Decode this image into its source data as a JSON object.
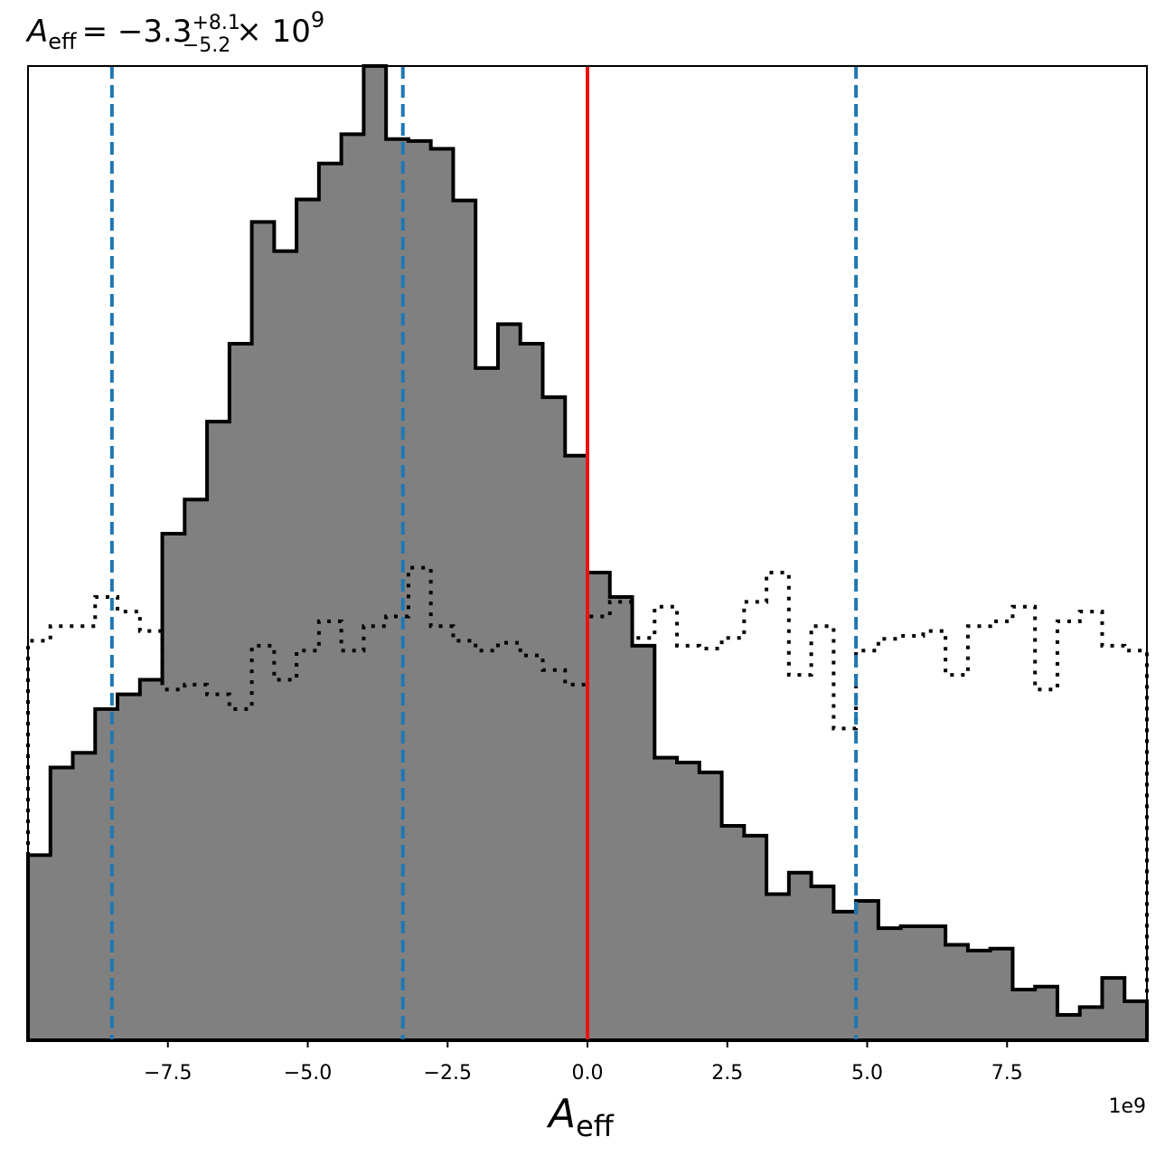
{
  "chart_data": {
    "type": "histogram",
    "title": {
      "symbol": "A",
      "symbol_sub": "eff",
      "equals": "= −3.3",
      "sup": "+8.1",
      "sub": "−5.2",
      "times": "× 10",
      "exp": "9"
    },
    "xlabel": {
      "symbol": "A",
      "sub": "eff"
    },
    "offset_text": "1e9",
    "x_scale_factor": 1000000000.0,
    "xlim": [
      -10.0,
      10.0
    ],
    "ylim": [
      0,
      1.0
    ],
    "y_ticks_shown": false,
    "x_ticks": [
      -7.5,
      -5.0,
      -2.5,
      0.0,
      2.5,
      5.0,
      7.5
    ],
    "x_tick_labels": [
      "−7.5",
      "−5.0",
      "−2.5",
      "0.0",
      "2.5",
      "5.0",
      "7.5"
    ],
    "bin_edges": [
      -10.0,
      -9.6,
      -9.2,
      -8.8,
      -8.4,
      -8.0,
      -7.6,
      -7.2,
      -6.8,
      -6.4,
      -6.0,
      -5.6,
      -5.2,
      -4.8,
      -4.4,
      -4.0,
      -3.6,
      -3.2,
      -2.8,
      -2.4,
      -2.0,
      -1.6,
      -1.2,
      -0.8,
      -0.4,
      0.0,
      0.4,
      0.8,
      1.2,
      1.6,
      2.0,
      2.4,
      2.8,
      3.2,
      3.6,
      4.0,
      4.4,
      4.8,
      5.2,
      5.6,
      6.0,
      6.4,
      6.8,
      7.2,
      7.6,
      8.0,
      8.4,
      8.8,
      9.2,
      9.6,
      10.0
    ],
    "series": [
      {
        "style": "filled",
        "fill_color": "#808080",
        "edge_color": "#000000",
        "values": [
          0.19,
          0.28,
          0.295,
          0.34,
          0.355,
          0.37,
          0.52,
          0.555,
          0.635,
          0.715,
          0.84,
          0.81,
          0.863,
          0.9,
          0.93,
          1.0,
          0.925,
          0.923,
          0.915,
          0.862,
          0.69,
          0.735,
          0.715,
          0.66,
          0.6,
          0.48,
          0.455,
          0.405,
          0.29,
          0.285,
          0.275,
          0.22,
          0.21,
          0.15,
          0.172,
          0.158,
          0.132,
          0.143,
          0.115,
          0.117,
          0.117,
          0.098,
          0.092,
          0.094,
          0.052,
          0.055,
          0.026,
          0.034,
          0.064,
          0.04
        ]
      },
      {
        "style": "dotted",
        "edge_color": "#000000",
        "values": [
          0.41,
          0.425,
          0.425,
          0.455,
          0.44,
          0.42,
          0.36,
          0.365,
          0.355,
          0.34,
          0.405,
          0.37,
          0.4,
          0.43,
          0.4,
          0.425,
          0.435,
          0.485,
          0.425,
          0.41,
          0.4,
          0.408,
          0.395,
          0.38,
          0.365,
          0.435,
          0.45,
          0.413,
          0.445,
          0.405,
          0.402,
          0.413,
          0.45,
          0.48,
          0.375,
          0.425,
          0.32,
          0.4,
          0.412,
          0.415,
          0.42,
          0.375,
          0.425,
          0.43,
          0.445,
          0.36,
          0.43,
          0.44,
          0.405,
          0.4
        ]
      }
    ],
    "vlines": [
      {
        "x": -8.5,
        "style": "dashed",
        "color": "#1f77b4"
      },
      {
        "x": -3.3,
        "style": "dashed",
        "color": "#1f77b4"
      },
      {
        "x": 4.8,
        "style": "dashed",
        "color": "#1f77b4"
      },
      {
        "x": 0.0,
        "style": "solid",
        "color": "#ee1111"
      }
    ],
    "grid": false,
    "legend": "none"
  }
}
